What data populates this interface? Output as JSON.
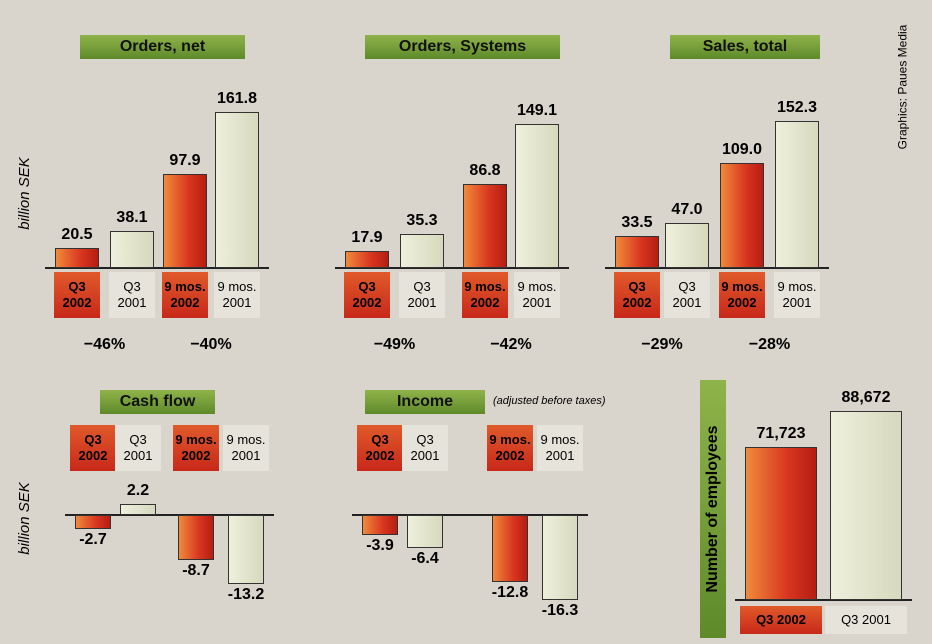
{
  "credit": "Graphics: Paues Media",
  "chart_data": [
    {
      "type": "bar",
      "title": "Orders, net",
      "y_label": "billion SEK",
      "categories": [
        "Q3 2002",
        "Q3 2001",
        "9 mos. 2002",
        "9 mos. 2001"
      ],
      "values": [
        20.5,
        38.1,
        97.9,
        161.8
      ],
      "value_labels": [
        "20.5",
        "38.1",
        "97.9",
        "161.8"
      ],
      "change_labels": [
        "−46%",
        "−40%"
      ],
      "colors": [
        "#d8351f",
        "#d6d9bd"
      ],
      "ylim": [
        0,
        170
      ]
    },
    {
      "type": "bar",
      "title": "Orders, Systems",
      "categories": [
        "Q3 2002",
        "Q3 2001",
        "9 mos. 2002",
        "9 mos. 2001"
      ],
      "values": [
        17.9,
        35.3,
        86.8,
        149.1
      ],
      "value_labels": [
        "17.9",
        "35.3",
        "86.8",
        "149.1"
      ],
      "change_labels": [
        "−49%",
        "−42%"
      ],
      "colors": [
        "#d8351f",
        "#d6d9bd"
      ],
      "ylim": [
        0,
        170
      ]
    },
    {
      "type": "bar",
      "title": "Sales, total",
      "categories": [
        "Q3 2002",
        "Q3 2001",
        "9 mos. 2002",
        "9 mos. 2001"
      ],
      "values": [
        33.5,
        47.0,
        109.0,
        152.3
      ],
      "value_labels": [
        "33.5",
        "47.0",
        "109.0",
        "152.3"
      ],
      "change_labels": [
        "−29%",
        "−28%"
      ],
      "colors": [
        "#d8351f",
        "#d6d9bd"
      ],
      "ylim": [
        0,
        170
      ]
    },
    {
      "type": "bar",
      "title": "Cash flow",
      "y_label": "billion SEK",
      "categories": [
        "Q3 2002",
        "Q3 2001",
        "9 mos. 2002",
        "9 mos. 2001"
      ],
      "values": [
        -2.7,
        2.2,
        -8.7,
        -13.2
      ],
      "value_labels": [
        "-2.7",
        "2.2",
        "-8.7",
        "-13.2"
      ],
      "colors": [
        "#d8351f",
        "#d6d9bd"
      ],
      "ylim": [
        -17,
        3
      ]
    },
    {
      "type": "bar",
      "title": "Income",
      "subtitle": "(adjusted before taxes)",
      "categories": [
        "Q3 2002",
        "Q3 2001",
        "9 mos. 2002",
        "9 mos. 2001"
      ],
      "values": [
        -3.9,
        -6.4,
        -12.8,
        -16.3
      ],
      "value_labels": [
        "-3.9",
        "-6.4",
        "-12.8",
        "-16.3"
      ],
      "colors": [
        "#d8351f",
        "#d6d9bd"
      ],
      "ylim": [
        -17,
        3
      ]
    },
    {
      "type": "bar",
      "title": "Number of employees",
      "categories": [
        "Q3 2002",
        "Q3 2001"
      ],
      "values": [
        71723,
        88672
      ],
      "value_labels": [
        "71,723",
        "88,672"
      ],
      "colors": [
        "#d8351f",
        "#d6d9bd"
      ],
      "ylim": [
        0,
        95000
      ]
    }
  ]
}
